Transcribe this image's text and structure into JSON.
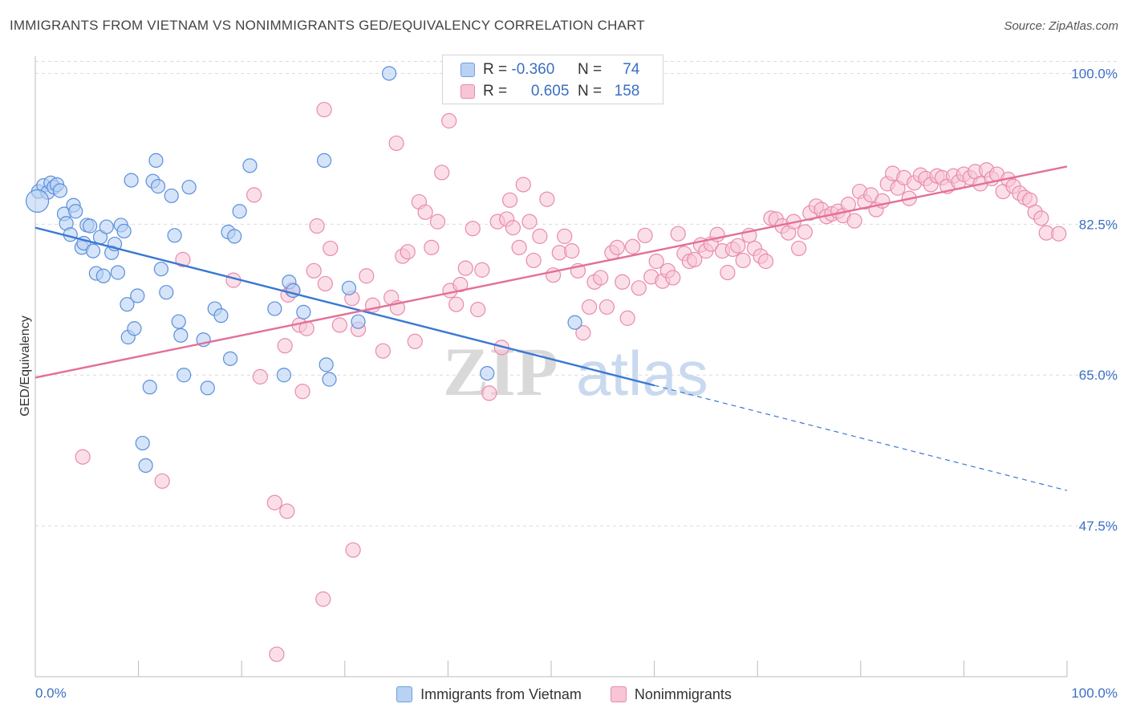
{
  "header": {
    "title": "IMMIGRANTS FROM VIETNAM VS NONIMMIGRANTS GED/EQUIVALENCY CORRELATION CHART",
    "source": "Source: ZipAtlas.com"
  },
  "watermark": {
    "zip": "ZIP",
    "atlas": "atlas"
  },
  "legend": {
    "rows": [
      {
        "r_label": "R =",
        "r_value": "-0.360",
        "n_label": "N =",
        "n_value": "74"
      },
      {
        "r_label": "R =",
        "r_value": "0.605",
        "n_label": "N =",
        "n_value": "158"
      }
    ]
  },
  "colors": {
    "blue": "#3a78d4",
    "blue_fill": "#b9d2f3",
    "pink": "#e36f99",
    "pink_fill": "#f7c5d5",
    "axis_label": "#3a6fc4"
  },
  "chart_data": {
    "type": "scatter",
    "title": "IMMIGRANTS FROM VIETNAM VS NONIMMIGRANTS GED/EQUIVALENCY CORRELATION CHART",
    "xlabel": "",
    "ylabel": "GED/Equivalency",
    "xlim": [
      0,
      100
    ],
    "ylim": [
      30,
      102
    ],
    "x_tick_labels": [
      "0.0%",
      "100.0%"
    ],
    "y_ticks": [
      100,
      82.5,
      65,
      47.5
    ],
    "y_tick_labels": [
      "100.0%",
      "82.5%",
      "65.0%",
      "47.5%"
    ],
    "grid": true,
    "legend_position": "top-center",
    "series": [
      {
        "name": "Immigrants from Vietnam",
        "color": "#3a78d4",
        "r": -0.36,
        "n": 74,
        "trend": {
          "x0": 0,
          "y0": 82.1,
          "x1": 60,
          "y1": 63.8,
          "dashed_to_x": 100,
          "dashed_to_y": 51.6
        },
        "points": [
          [
            0.3,
            86.3
          ],
          [
            0.8,
            87.0
          ],
          [
            1.2,
            86.2
          ],
          [
            1.5,
            87.3
          ],
          [
            1.8,
            86.8
          ],
          [
            2.1,
            87.1
          ],
          [
            2.4,
            86.4
          ],
          [
            2.8,
            83.7
          ],
          [
            3.0,
            82.6
          ],
          [
            3.4,
            81.3
          ],
          [
            3.7,
            84.7
          ],
          [
            3.9,
            84.0
          ],
          [
            4.5,
            79.8
          ],
          [
            4.7,
            80.3
          ],
          [
            5.0,
            82.4
          ],
          [
            5.3,
            82.3
          ],
          [
            5.6,
            79.4
          ],
          [
            5.9,
            76.8
          ],
          [
            6.3,
            81.0
          ],
          [
            6.6,
            76.5
          ],
          [
            6.9,
            82.2
          ],
          [
            7.4,
            79.2
          ],
          [
            7.7,
            80.2
          ],
          [
            8.0,
            76.9
          ],
          [
            8.3,
            82.4
          ],
          [
            8.6,
            81.7
          ],
          [
            8.9,
            73.2
          ],
          [
            9.0,
            69.4
          ],
          [
            9.3,
            87.6
          ],
          [
            9.6,
            70.4
          ],
          [
            9.9,
            74.2
          ],
          [
            10.4,
            57.1
          ],
          [
            10.7,
            54.5
          ],
          [
            11.1,
            63.6
          ],
          [
            11.4,
            87.5
          ],
          [
            11.7,
            89.9
          ],
          [
            11.9,
            86.9
          ],
          [
            12.2,
            77.3
          ],
          [
            12.7,
            74.6
          ],
          [
            13.2,
            85.8
          ],
          [
            13.5,
            81.2
          ],
          [
            13.9,
            71.2
          ],
          [
            14.1,
            69.6
          ],
          [
            14.4,
            65.0
          ],
          [
            14.9,
            86.8
          ],
          [
            16.3,
            69.1
          ],
          [
            16.7,
            63.5
          ],
          [
            17.4,
            72.7
          ],
          [
            18.0,
            71.9
          ],
          [
            18.7,
            81.6
          ],
          [
            18.9,
            66.9
          ],
          [
            19.3,
            81.1
          ],
          [
            19.8,
            84.0
          ],
          [
            20.8,
            89.3
          ],
          [
            23.2,
            72.7
          ],
          [
            24.1,
            65.0
          ],
          [
            24.6,
            75.8
          ],
          [
            25.0,
            74.8
          ],
          [
            26.0,
            72.3
          ],
          [
            28.0,
            89.9
          ],
          [
            28.2,
            66.2
          ],
          [
            28.5,
            64.5
          ],
          [
            30.4,
            75.1
          ],
          [
            31.3,
            71.2
          ],
          [
            34.3,
            100.0
          ],
          [
            43.8,
            65.2
          ],
          [
            52.3,
            71.1
          ],
          [
            0.2,
            85.2
          ]
        ]
      },
      {
        "name": "Nonimmigrants",
        "color": "#e36f99",
        "r": 0.605,
        "n": 158,
        "trend": {
          "x0": 0,
          "y0": 64.7,
          "x1": 100,
          "y1": 89.2
        },
        "points": [
          [
            4.6,
            55.5
          ],
          [
            12.3,
            52.7
          ],
          [
            14.3,
            78.4
          ],
          [
            19.2,
            76.0
          ],
          [
            21.2,
            85.9
          ],
          [
            21.8,
            64.8
          ],
          [
            23.2,
            50.2
          ],
          [
            24.2,
            68.4
          ],
          [
            24.5,
            74.3
          ],
          [
            24.9,
            74.9
          ],
          [
            25.6,
            70.8
          ],
          [
            25.9,
            63.1
          ],
          [
            26.3,
            70.4
          ],
          [
            27.0,
            77.1
          ],
          [
            27.3,
            82.3
          ],
          [
            28.1,
            75.6
          ],
          [
            28.6,
            79.7
          ],
          [
            29.5,
            70.8
          ],
          [
            30.7,
            73.9
          ],
          [
            31.3,
            70.3
          ],
          [
            32.1,
            76.5
          ],
          [
            32.7,
            73.1
          ],
          [
            33.7,
            67.8
          ],
          [
            34.5,
            74.0
          ],
          [
            35.1,
            72.8
          ],
          [
            35.6,
            78.8
          ],
          [
            36.1,
            79.3
          ],
          [
            36.8,
            68.9
          ],
          [
            37.2,
            85.1
          ],
          [
            37.8,
            83.9
          ],
          [
            38.4,
            79.8
          ],
          [
            39.0,
            82.8
          ],
          [
            39.4,
            88.5
          ],
          [
            40.2,
            74.8
          ],
          [
            40.8,
            73.2
          ],
          [
            41.2,
            75.5
          ],
          [
            41.7,
            77.4
          ],
          [
            42.4,
            82.0
          ],
          [
            42.9,
            72.6
          ],
          [
            43.3,
            77.2
          ],
          [
            44.0,
            62.9
          ],
          [
            44.8,
            82.8
          ],
          [
            45.2,
            68.2
          ],
          [
            45.7,
            83.1
          ],
          [
            46.3,
            82.1
          ],
          [
            46.9,
            79.8
          ],
          [
            47.3,
            87.1
          ],
          [
            47.9,
            82.8
          ],
          [
            48.3,
            78.3
          ],
          [
            48.9,
            81.1
          ],
          [
            49.6,
            85.4
          ],
          [
            50.2,
            76.6
          ],
          [
            50.8,
            79.2
          ],
          [
            51.3,
            81.1
          ],
          [
            52.0,
            79.4
          ],
          [
            52.6,
            77.1
          ],
          [
            53.1,
            69.9
          ],
          [
            53.7,
            72.9
          ],
          [
            54.2,
            75.8
          ],
          [
            54.8,
            76.3
          ],
          [
            55.4,
            72.9
          ],
          [
            55.9,
            79.2
          ],
          [
            56.4,
            79.8
          ],
          [
            56.9,
            75.8
          ],
          [
            57.4,
            71.6
          ],
          [
            57.9,
            79.9
          ],
          [
            58.5,
            75.1
          ],
          [
            59.1,
            81.2
          ],
          [
            59.7,
            76.4
          ],
          [
            60.2,
            78.2
          ],
          [
            60.8,
            75.9
          ],
          [
            61.3,
            77.1
          ],
          [
            61.8,
            76.3
          ],
          [
            62.3,
            81.4
          ],
          [
            62.9,
            79.1
          ],
          [
            63.4,
            78.2
          ],
          [
            63.9,
            78.4
          ],
          [
            64.5,
            80.1
          ],
          [
            65.0,
            79.4
          ],
          [
            65.5,
            80.2
          ],
          [
            66.1,
            81.3
          ],
          [
            66.6,
            79.4
          ],
          [
            67.1,
            76.9
          ],
          [
            67.6,
            79.6
          ],
          [
            68.1,
            80.0
          ],
          [
            68.6,
            78.3
          ],
          [
            69.2,
            81.2
          ],
          [
            69.7,
            79.7
          ],
          [
            70.3,
            78.8
          ],
          [
            70.8,
            78.2
          ],
          [
            71.3,
            83.2
          ],
          [
            71.8,
            83.1
          ],
          [
            72.4,
            82.3
          ],
          [
            73.0,
            81.5
          ],
          [
            73.5,
            82.8
          ],
          [
            74.0,
            79.7
          ],
          [
            74.6,
            81.6
          ],
          [
            75.1,
            83.8
          ],
          [
            75.7,
            84.6
          ],
          [
            76.2,
            84.2
          ],
          [
            76.7,
            83.4
          ],
          [
            77.2,
            83.7
          ],
          [
            77.8,
            84.0
          ],
          [
            78.3,
            83.5
          ],
          [
            78.8,
            84.8
          ],
          [
            79.4,
            82.9
          ],
          [
            79.9,
            86.3
          ],
          [
            80.4,
            85.1
          ],
          [
            81.0,
            85.9
          ],
          [
            81.5,
            84.2
          ],
          [
            82.1,
            85.2
          ],
          [
            82.6,
            87.2
          ],
          [
            83.1,
            88.4
          ],
          [
            83.6,
            86.7
          ],
          [
            84.2,
            87.9
          ],
          [
            84.7,
            85.5
          ],
          [
            85.2,
            87.3
          ],
          [
            85.8,
            88.2
          ],
          [
            86.3,
            87.8
          ],
          [
            86.8,
            87.1
          ],
          [
            87.4,
            88.1
          ],
          [
            87.9,
            87.9
          ],
          [
            88.4,
            86.9
          ],
          [
            89.0,
            88.1
          ],
          [
            89.5,
            87.4
          ],
          [
            90.0,
            88.3
          ],
          [
            90.6,
            87.9
          ],
          [
            91.1,
            88.6
          ],
          [
            91.6,
            87.2
          ],
          [
            92.2,
            88.8
          ],
          [
            92.7,
            87.8
          ],
          [
            93.2,
            88.3
          ],
          [
            93.8,
            86.3
          ],
          [
            94.3,
            87.7
          ],
          [
            94.8,
            86.9
          ],
          [
            95.4,
            86.1
          ],
          [
            95.9,
            85.6
          ],
          [
            96.4,
            85.3
          ],
          [
            96.9,
            83.9
          ],
          [
            97.5,
            83.2
          ],
          [
            98.0,
            81.5
          ],
          [
            99.2,
            81.4
          ],
          [
            28.0,
            95.8
          ],
          [
            35.0,
            91.9
          ],
          [
            40.1,
            94.5
          ],
          [
            30.8,
            44.7
          ],
          [
            27.9,
            39.0
          ],
          [
            23.4,
            32.6
          ],
          [
            24.4,
            49.2
          ],
          [
            46.0,
            85.3
          ]
        ]
      }
    ]
  },
  "bottom_legend": {
    "items": [
      "Immigrants from Vietnam",
      "Nonimmigrants"
    ]
  }
}
